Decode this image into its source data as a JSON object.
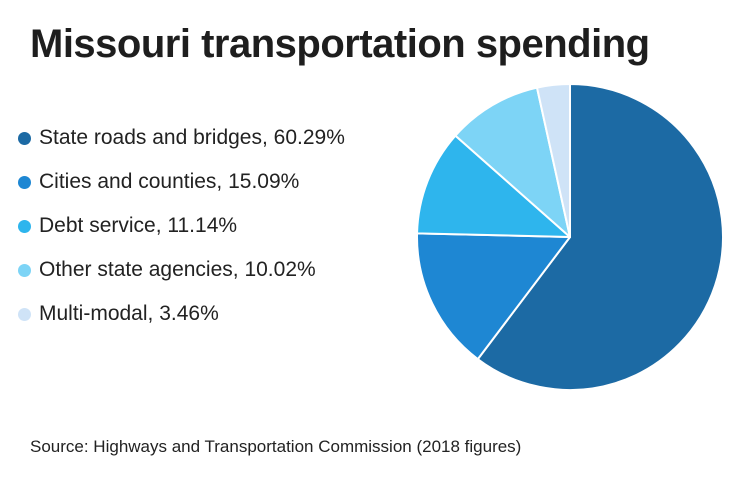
{
  "chart_data": {
    "type": "pie",
    "title": "Missouri transportation spending",
    "labels": [
      "State roads and bridges",
      "Cities and counties",
      "Debt service",
      "Other state agencies",
      "Multi-modal"
    ],
    "values": [
      60.29,
      15.09,
      11.14,
      10.02,
      3.46
    ],
    "legend_labels": [
      "State roads and bridges, 60.29%",
      "Cities and counties, 15.09%",
      "Debt service, 11.14%",
      "Other state agencies, 10.02%",
      "Multi-modal, 3.46%"
    ],
    "colors": [
      "#1c6aa4",
      "#1e87d3",
      "#2eb5ed",
      "#7dd4f6",
      "#cfe3f7"
    ],
    "legend_position": "left",
    "source": "Source: Highways and Transportation Commission (2018 figures)"
  }
}
